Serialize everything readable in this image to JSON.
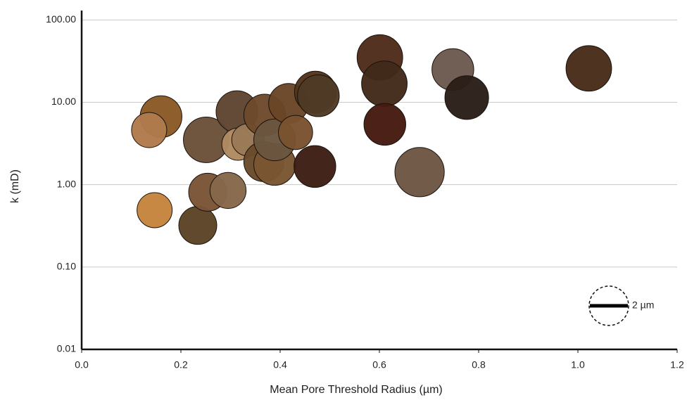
{
  "chart_data": {
    "type": "scatter",
    "x_label": "Mean Pore Threshold Radius (µm)",
    "y_label": "k (mD)",
    "x": [
      0.16,
      0.136,
      0.147,
      0.234,
      0.254,
      0.295,
      0.251,
      0.313,
      0.315,
      0.335,
      0.369,
      0.367,
      0.389,
      0.389,
      0.417,
      0.431,
      0.47,
      0.471,
      0.477,
      0.601,
      0.61,
      0.611,
      0.681,
      0.748,
      0.776,
      1.022
    ],
    "values": [
      6.7,
      4.6,
      0.49,
      0.32,
      0.81,
      0.85,
      3.5,
      7.7,
      3.1,
      3.5,
      7.0,
      1.9,
      1.76,
      3.5,
      9.7,
      4.3,
      1.66,
      13.3,
      12,
      35,
      16.8,
      5.4,
      1.42,
      25,
      11.4,
      25.8
    ],
    "sizes": [
      2.2,
      1.85,
      1.85,
      2.0,
      2.0,
      1.9,
      2.4,
      2.2,
      1.7,
      1.7,
      2.2,
      2.1,
      2.2,
      2.2,
      2.1,
      1.8,
      2.2,
      2.2,
      2.2,
      2.4,
      2.4,
      2.2,
      2.6,
      2.2,
      2.3,
      2.4
    ],
    "colors": [
      "#8a5a26",
      "#b07a4c",
      "#c4843c",
      "#5c4326",
      "#7a5436",
      "#86674a",
      "#6b5138",
      "#5e4531",
      "#b08a62",
      "#9a7a58",
      "#6e4a2c",
      "#6a4a2a",
      "#7a5632",
      "#6a5640",
      "#6a4626",
      "#7a5230",
      "#3e1e14",
      "#54341c",
      "#4e3a26",
      "#4e2c1c",
      "#422a1a",
      "#461a10",
      "#6e5644",
      "#6c5a50",
      "#2a1e18",
      "#482c1a"
    ],
    "size_legend": {
      "value": 2,
      "label": "2 µm"
    },
    "log_y": true,
    "grid": true,
    "xlim": [
      0,
      1.2
    ],
    "ylim": [
      0.01,
      130
    ],
    "xticks": [
      {
        "value": 0,
        "label": "0.0"
      },
      0.2,
      0.4,
      0.6,
      0.8,
      {
        "value": 1,
        "label": "1.0"
      },
      1.2
    ],
    "yticks": [
      {
        "value": 0.01,
        "label": "0.01"
      },
      {
        "value": 0.1,
        "label": "0.10"
      },
      {
        "value": 1,
        "label": "1.00"
      },
      {
        "value": 10,
        "label": "10.00"
      },
      {
        "value": 100,
        "label": "100.00"
      }
    ]
  }
}
